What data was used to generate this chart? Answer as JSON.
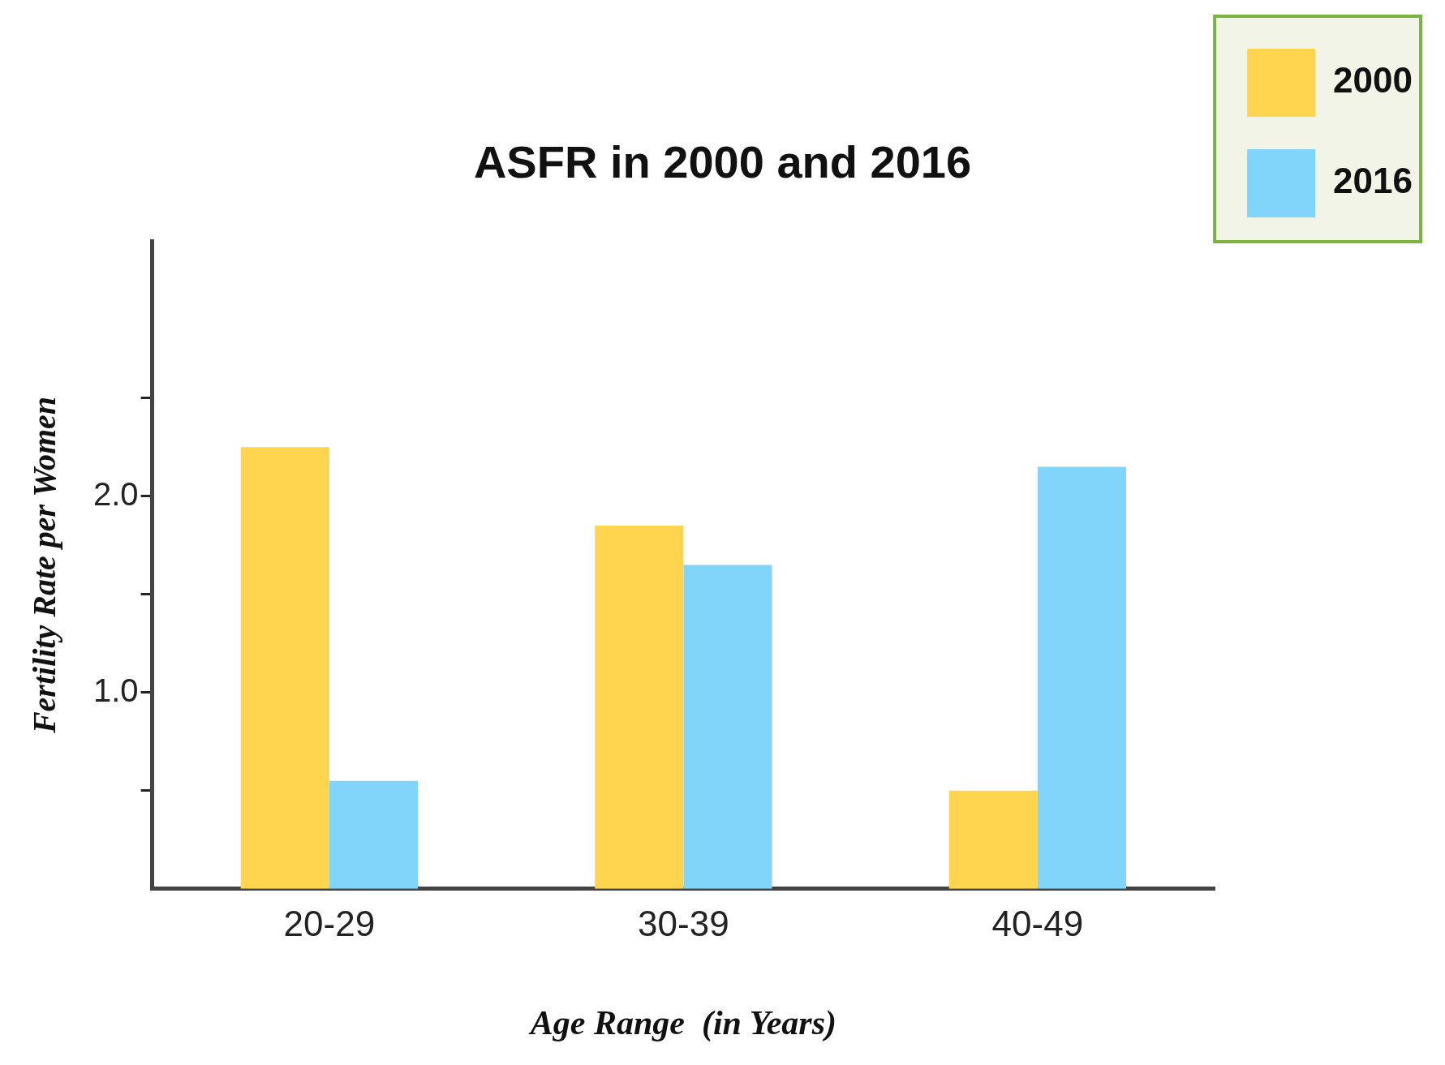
{
  "chart_data": {
    "type": "bar",
    "title": "ASFR in 2000 and 2016",
    "xlabel": "Age Range  (in Years)",
    "ylabel": "Fertility Rate per Women",
    "categories": [
      "20-29",
      "30-39",
      "40-49"
    ],
    "series": [
      {
        "name": "2000",
        "color": "#ffd54f",
        "values": [
          2.25,
          1.85,
          0.5
        ]
      },
      {
        "name": "2016",
        "color": "#81d4fa",
        "values": [
          0.55,
          1.65,
          2.15
        ]
      }
    ],
    "ylim": [
      0,
      3.3
    ],
    "yticks": [
      {
        "value": 0.5,
        "label": null
      },
      {
        "value": 1,
        "label": "1.0"
      },
      {
        "value": 1.5,
        "label": null
      },
      {
        "value": 2,
        "label": "2.0"
      },
      {
        "value": 2.5,
        "label": null
      }
    ],
    "grid": false,
    "legend": "top right"
  }
}
